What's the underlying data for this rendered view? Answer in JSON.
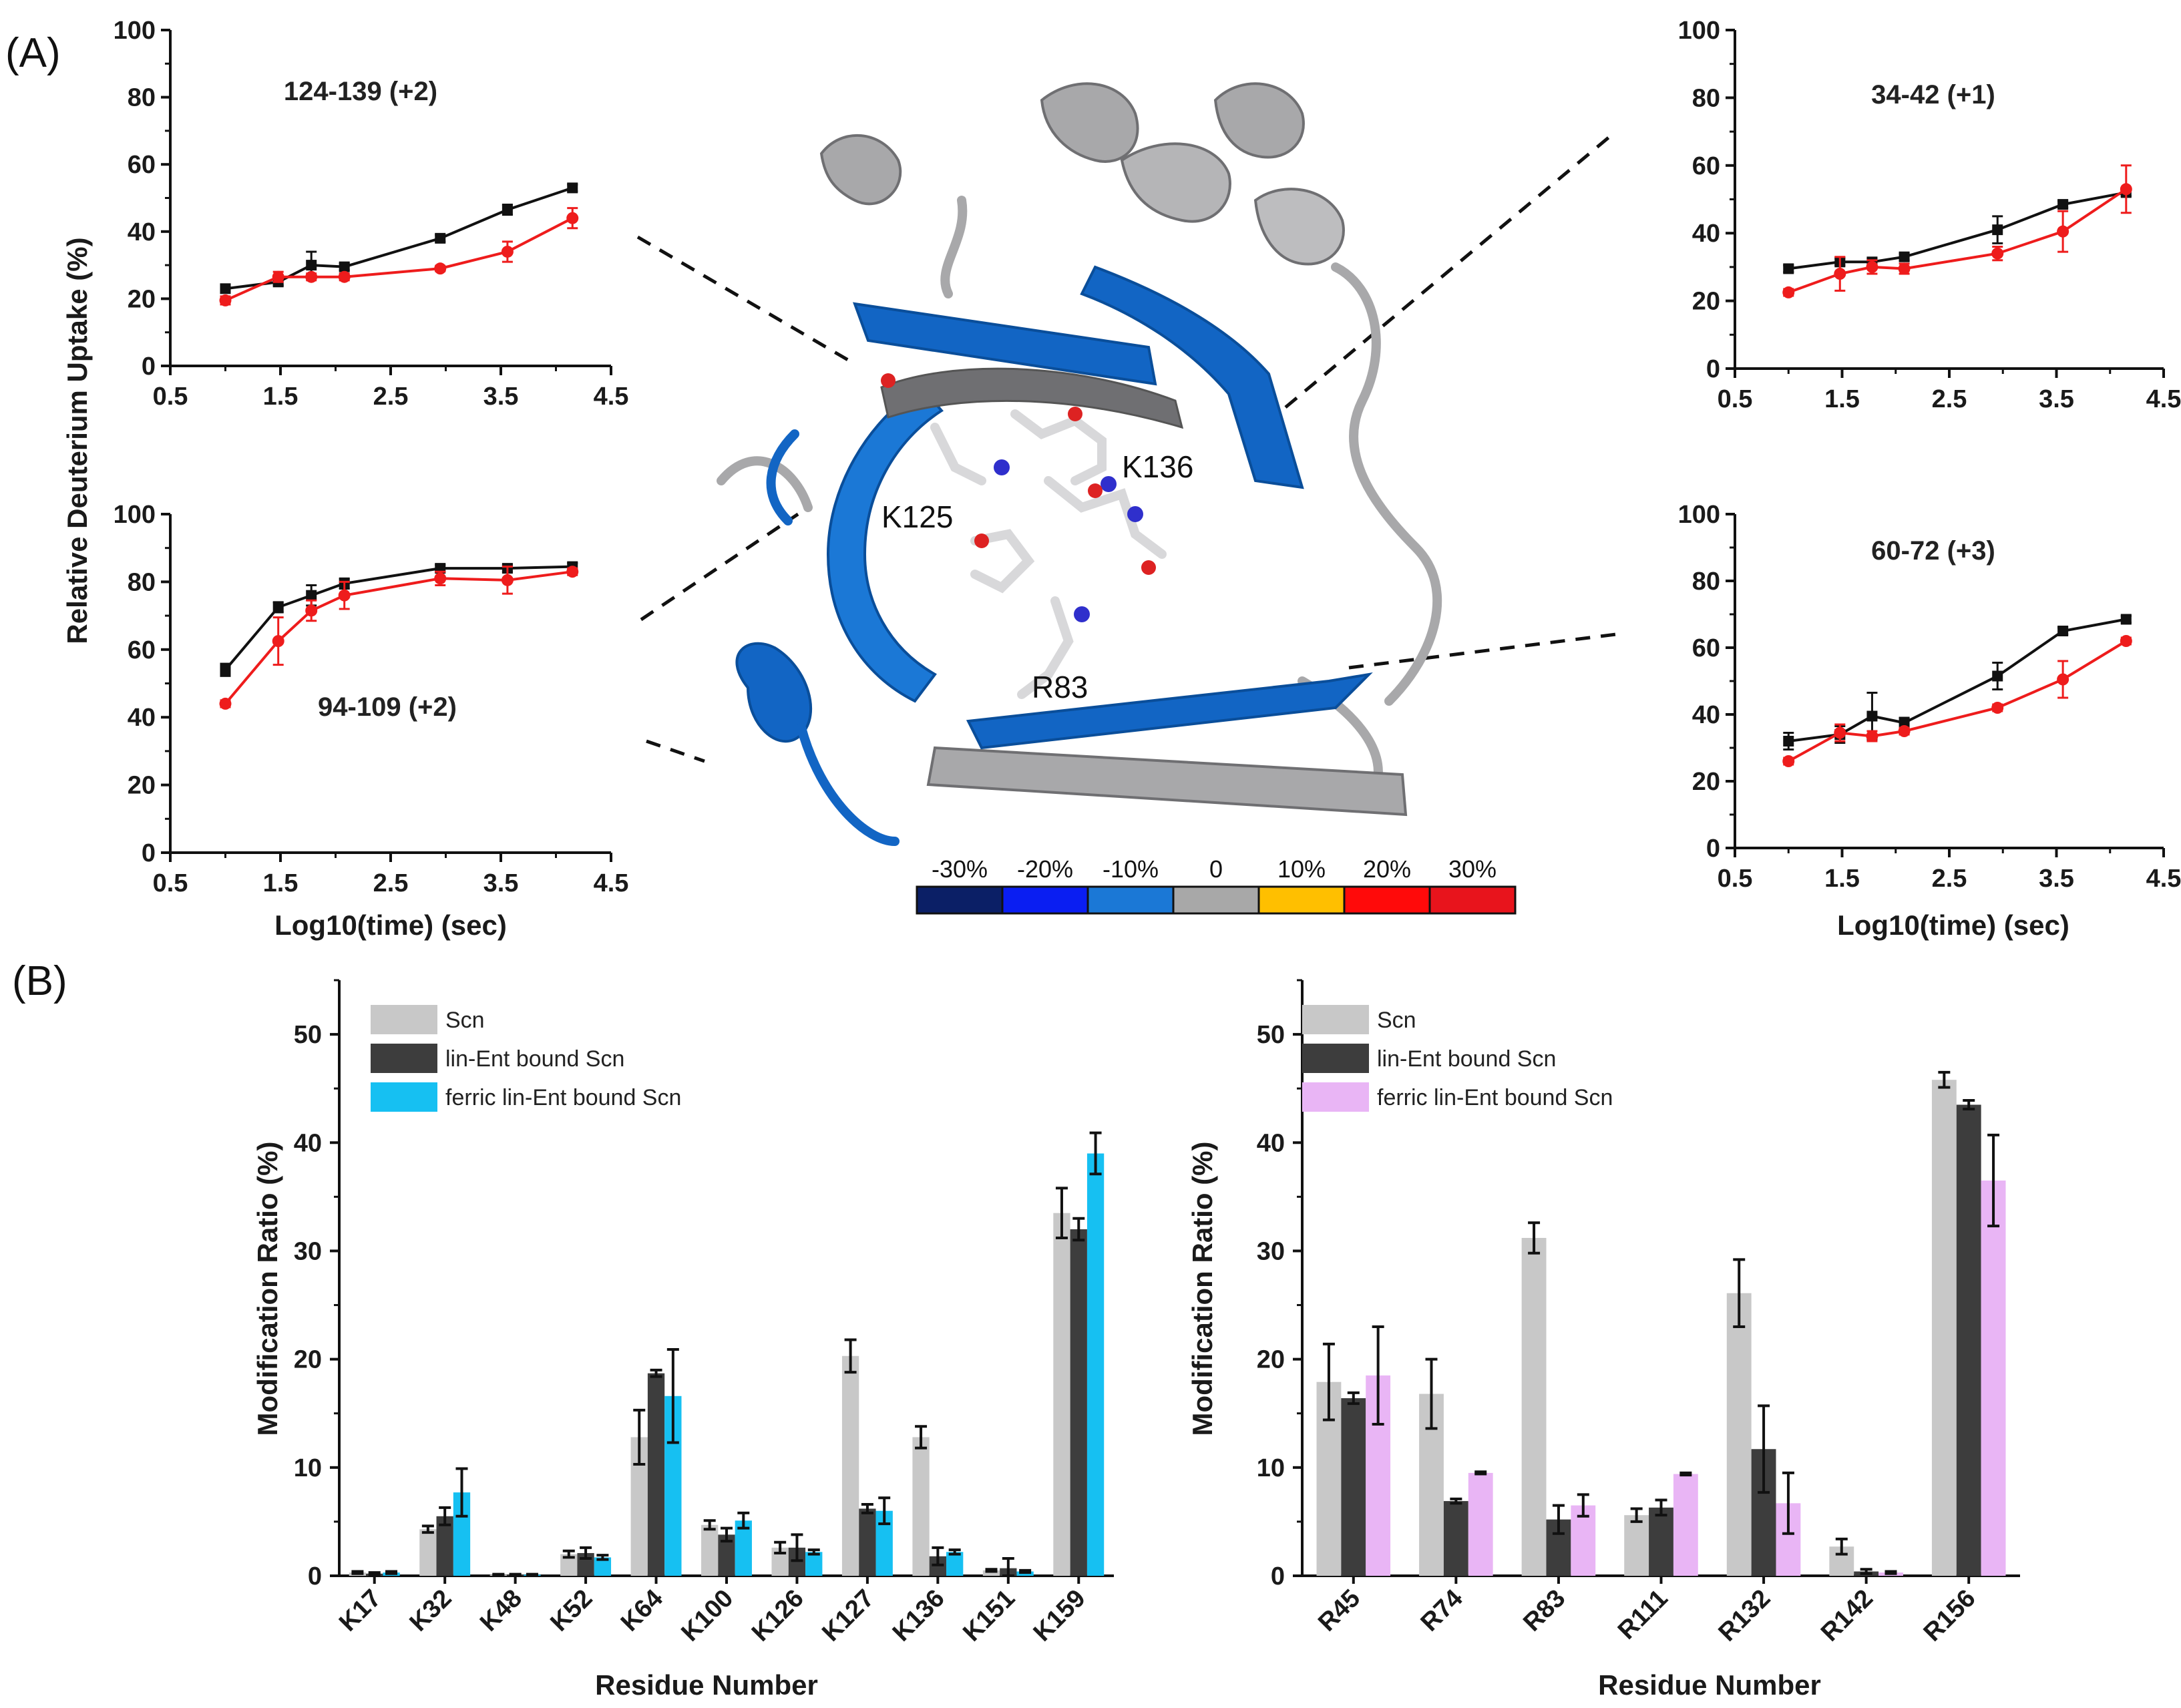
{
  "figure": {
    "panel_a_label": "(A)",
    "panel_b_label": "(B)"
  },
  "structure": {
    "residue_labels": [
      "K125",
      "K136",
      "R83"
    ],
    "colors": {
      "blue_dark": "#0a4e9a",
      "blue": "#1265c4",
      "gray": "#a8a8aa",
      "gray_dark": "#6f6f72"
    }
  },
  "colorbar": {
    "labels": [
      "-30%",
      "-20%",
      "-10%",
      "0",
      "10%",
      "20%",
      "30%"
    ],
    "colors": [
      "#0b1f66",
      "#0a1ef2",
      "#1b78d6",
      "#a8a8a8",
      "#ffbf00",
      "#ff0a0a",
      "#e8141c"
    ]
  },
  "chart_data": [
    {
      "type": "line",
      "id": "hdx-124-139",
      "title": "124-139 (+2)",
      "xlabel": "",
      "ylabel": "Relative Deuterium Uptake (%)",
      "xlim": [
        0.5,
        4.5
      ],
      "ylim": [
        0,
        100
      ],
      "xticks": [
        "0.5",
        "1.5",
        "2.5",
        "3.5",
        "4.5"
      ],
      "yticks": [
        "0",
        "20",
        "40",
        "60",
        "80",
        "100"
      ],
      "series": [
        {
          "name": "black",
          "color": "#111111",
          "x": [
            1.0,
            1.48,
            1.78,
            2.08,
            2.95,
            3.56,
            4.15
          ],
          "y": [
            23,
            25,
            30,
            29.5,
            38,
            46.5,
            53
          ],
          "err": [
            1,
            1,
            4,
            1,
            1,
            1.5,
            1
          ]
        },
        {
          "name": "red",
          "color": "#ee1c1c",
          "x": [
            1.0,
            1.48,
            1.78,
            2.08,
            2.95,
            3.56,
            4.15
          ],
          "y": [
            19.5,
            26.5,
            26.5,
            26.5,
            29,
            34,
            44
          ],
          "err": [
            1.2,
            1.5,
            1,
            1,
            0.8,
            3,
            3
          ]
        }
      ]
    },
    {
      "type": "line",
      "id": "hdx-94-109",
      "title": "94-109 (+2)",
      "xlabel": "Log10(time) (sec)",
      "ylabel": "Relative Deuterium Uptake (%)",
      "xlim": [
        0.5,
        4.5
      ],
      "ylim": [
        0,
        100
      ],
      "xticks": [
        "0.5",
        "1.5",
        "2.5",
        "3.5",
        "4.5"
      ],
      "yticks": [
        "0",
        "20",
        "40",
        "60",
        "80",
        "100"
      ],
      "series": [
        {
          "name": "black",
          "color": "#111111",
          "x": [
            1.0,
            1.48,
            1.78,
            2.08,
            2.95,
            3.56,
            4.15
          ],
          "y": [
            54,
            72.5,
            76,
            79.5,
            84,
            84,
            84.5
          ],
          "err": [
            1.8,
            1.5,
            3,
            1.5,
            1,
            1,
            1
          ]
        },
        {
          "name": "red",
          "color": "#ee1c1c",
          "x": [
            1.0,
            1.48,
            1.78,
            2.08,
            2.95,
            3.56,
            4.15
          ],
          "y": [
            44,
            62.5,
            71.5,
            76,
            81,
            80.5,
            83
          ],
          "err": [
            1,
            7,
            3,
            4,
            2,
            4,
            1
          ]
        }
      ]
    },
    {
      "type": "line",
      "id": "hdx-34-42",
      "title": "34-42 (+1)",
      "xlabel": "",
      "ylabel": "",
      "xlim": [
        0.5,
        4.5
      ],
      "ylim": [
        0,
        100
      ],
      "xticks": [
        "0.5",
        "1.5",
        "2.5",
        "3.5",
        "4.5"
      ],
      "yticks": [
        "0",
        "20",
        "40",
        "60",
        "80",
        "100"
      ],
      "series": [
        {
          "name": "black",
          "color": "#111111",
          "x": [
            1.0,
            1.48,
            1.78,
            2.08,
            2.95,
            3.56,
            4.15
          ],
          "y": [
            29.5,
            31.5,
            31.5,
            33,
            41,
            48.5,
            52
          ],
          "err": [
            1,
            1,
            1,
            1,
            4,
            1,
            1
          ]
        },
        {
          "name": "red",
          "color": "#ee1c1c",
          "x": [
            1.0,
            1.48,
            1.78,
            2.08,
            2.95,
            3.56,
            4.15
          ],
          "y": [
            22.5,
            28,
            30,
            29.5,
            34,
            40.5,
            53
          ],
          "err": [
            1,
            5,
            2,
            1.5,
            2,
            6,
            7
          ]
        }
      ]
    },
    {
      "type": "line",
      "id": "hdx-60-72",
      "title": "60-72 (+3)",
      "xlabel": "Log10(time) (sec)",
      "ylabel": "",
      "xlim": [
        0.5,
        4.5
      ],
      "ylim": [
        0,
        100
      ],
      "xticks": [
        "0.5",
        "1.5",
        "2.5",
        "3.5",
        "4.5"
      ],
      "yticks": [
        "0",
        "20",
        "40",
        "60",
        "80",
        "100"
      ],
      "series": [
        {
          "name": "black",
          "color": "#111111",
          "x": [
            1.0,
            1.48,
            1.78,
            2.08,
            2.95,
            3.56,
            4.15
          ],
          "y": [
            32,
            34,
            39.5,
            37.5,
            51.5,
            65,
            68.5
          ],
          "err": [
            2.5,
            2.5,
            7,
            1.5,
            4,
            1,
            1
          ]
        },
        {
          "name": "red",
          "color": "#ee1c1c",
          "x": [
            1.0,
            1.48,
            1.78,
            2.08,
            2.95,
            3.56,
            4.15
          ],
          "y": [
            26,
            34.5,
            33.5,
            35,
            42,
            50.5,
            62
          ],
          "err": [
            1,
            2.5,
            1.5,
            1,
            1,
            5.5,
            1
          ]
        }
      ]
    },
    {
      "type": "bar",
      "id": "lysine-modification",
      "title": "",
      "xlabel": "Residue Number",
      "ylabel": "Modification Ratio (%)",
      "ylim": [
        0,
        55
      ],
      "yticks": [
        "0",
        "10",
        "20",
        "30",
        "40",
        "50"
      ],
      "categories": [
        "K17",
        "K32",
        "K48",
        "K52",
        "K64",
        "K100",
        "K126",
        "K127",
        "K136",
        "K151",
        "K159"
      ],
      "series": [
        {
          "name": "Scn",
          "color": "#c8c8c8",
          "values": [
            0.3,
            4.3,
            0.1,
            2.0,
            12.8,
            4.7,
            2.6,
            20.3,
            12.8,
            0.5,
            33.5
          ],
          "err": [
            0.1,
            0.3,
            0.05,
            0.3,
            2.5,
            0.4,
            0.5,
            1.5,
            1.0,
            0.1,
            2.3
          ]
        },
        {
          "name": "lin-Ent bound Scn",
          "color": "#3d3d3d",
          "values": [
            0.2,
            5.5,
            0.1,
            2.1,
            18.7,
            3.8,
            2.6,
            6.2,
            1.8,
            0.7,
            32.0
          ],
          "err": [
            0.1,
            0.8,
            0.05,
            0.5,
            0.3,
            0.6,
            1.2,
            0.4,
            0.8,
            0.9,
            1.0
          ]
        },
        {
          "name": "ferric lin-Ent bound Scn",
          "color": "#16c0f2",
          "values": [
            0.3,
            7.7,
            0.1,
            1.7,
            16.6,
            5.1,
            2.2,
            6.0,
            2.2,
            0.4,
            39.0
          ],
          "err": [
            0.1,
            2.2,
            0.05,
            0.2,
            4.3,
            0.7,
            0.2,
            1.2,
            0.2,
            0.1,
            1.9
          ]
        }
      ]
    },
    {
      "type": "bar",
      "id": "arginine-modification",
      "title": "",
      "xlabel": "Residue Number",
      "ylabel": "Modification Ratio (%)",
      "ylim": [
        0,
        55
      ],
      "yticks": [
        "0",
        "10",
        "20",
        "30",
        "40",
        "50"
      ],
      "categories": [
        "R45",
        "R74",
        "R83",
        "R111",
        "R132",
        "R142",
        "R156"
      ],
      "series": [
        {
          "name": "Scn",
          "color": "#c8c8c8",
          "values": [
            17.9,
            16.8,
            31.2,
            5.6,
            26.1,
            2.7,
            45.8
          ],
          "err": [
            3.5,
            3.2,
            1.4,
            0.6,
            3.1,
            0.7,
            0.7
          ]
        },
        {
          "name": "lin-Ent bound Scn",
          "color": "#3d3d3d",
          "values": [
            16.4,
            6.9,
            5.2,
            6.3,
            11.7,
            0.4,
            43.5
          ],
          "err": [
            0.5,
            0.2,
            1.3,
            0.7,
            4.0,
            0.2,
            0.4
          ]
        },
        {
          "name": "ferric lin-Ent bound Scn",
          "color": "#e9b5f5",
          "values": [
            18.5,
            9.5,
            6.5,
            9.4,
            6.7,
            0.3,
            36.5
          ],
          "err": [
            4.5,
            0.1,
            1.0,
            0.1,
            2.8,
            0.1,
            4.2
          ]
        }
      ]
    }
  ]
}
